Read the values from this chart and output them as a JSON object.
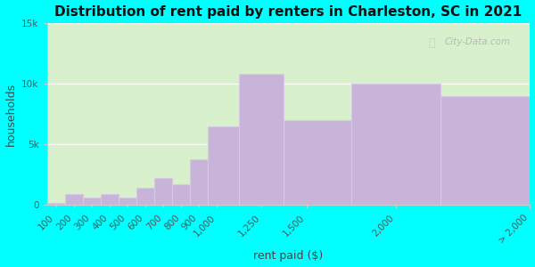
{
  "title": "Distribution of rent paid by renters in Charleston, SC in 2021",
  "xlabel": "rent paid ($)",
  "ylabel": "households",
  "bin_edges": [
    50,
    150,
    250,
    350,
    450,
    550,
    650,
    750,
    850,
    950,
    1125,
    1375,
    1750,
    2250,
    2750
  ],
  "bin_labels": [
    "100",
    "200",
    "300",
    "400",
    "500",
    "600",
    "700",
    "800",
    "900",
    "1,000",
    "1,250",
    "1,500",
    "2,000",
    "> 2,000"
  ],
  "values": [
    200,
    900,
    600,
    900,
    600,
    1400,
    2200,
    1700,
    3800,
    6500,
    10800,
    7000,
    10000,
    9000
  ],
  "bar_color": "#c8b4d8",
  "bar_edge_color": "#d8c8e8",
  "background_outer": "#00ffff",
  "background_plot_top": "#d8f0cc",
  "background_plot_bottom": "#e8fae0",
  "title_fontsize": 11,
  "axis_label_fontsize": 9,
  "tick_fontsize": 7.5,
  "ylim": [
    0,
    15000
  ],
  "yticks": [
    0,
    5000,
    10000,
    15000
  ],
  "ytick_labels": [
    "0",
    "5k",
    "10k",
    "15k"
  ],
  "watermark_text": "City-Data.com",
  "tick_label_positions": [
    100,
    200,
    300,
    400,
    500,
    600,
    700,
    800,
    900,
    1000,
    1250,
    1500,
    2000,
    2750
  ]
}
